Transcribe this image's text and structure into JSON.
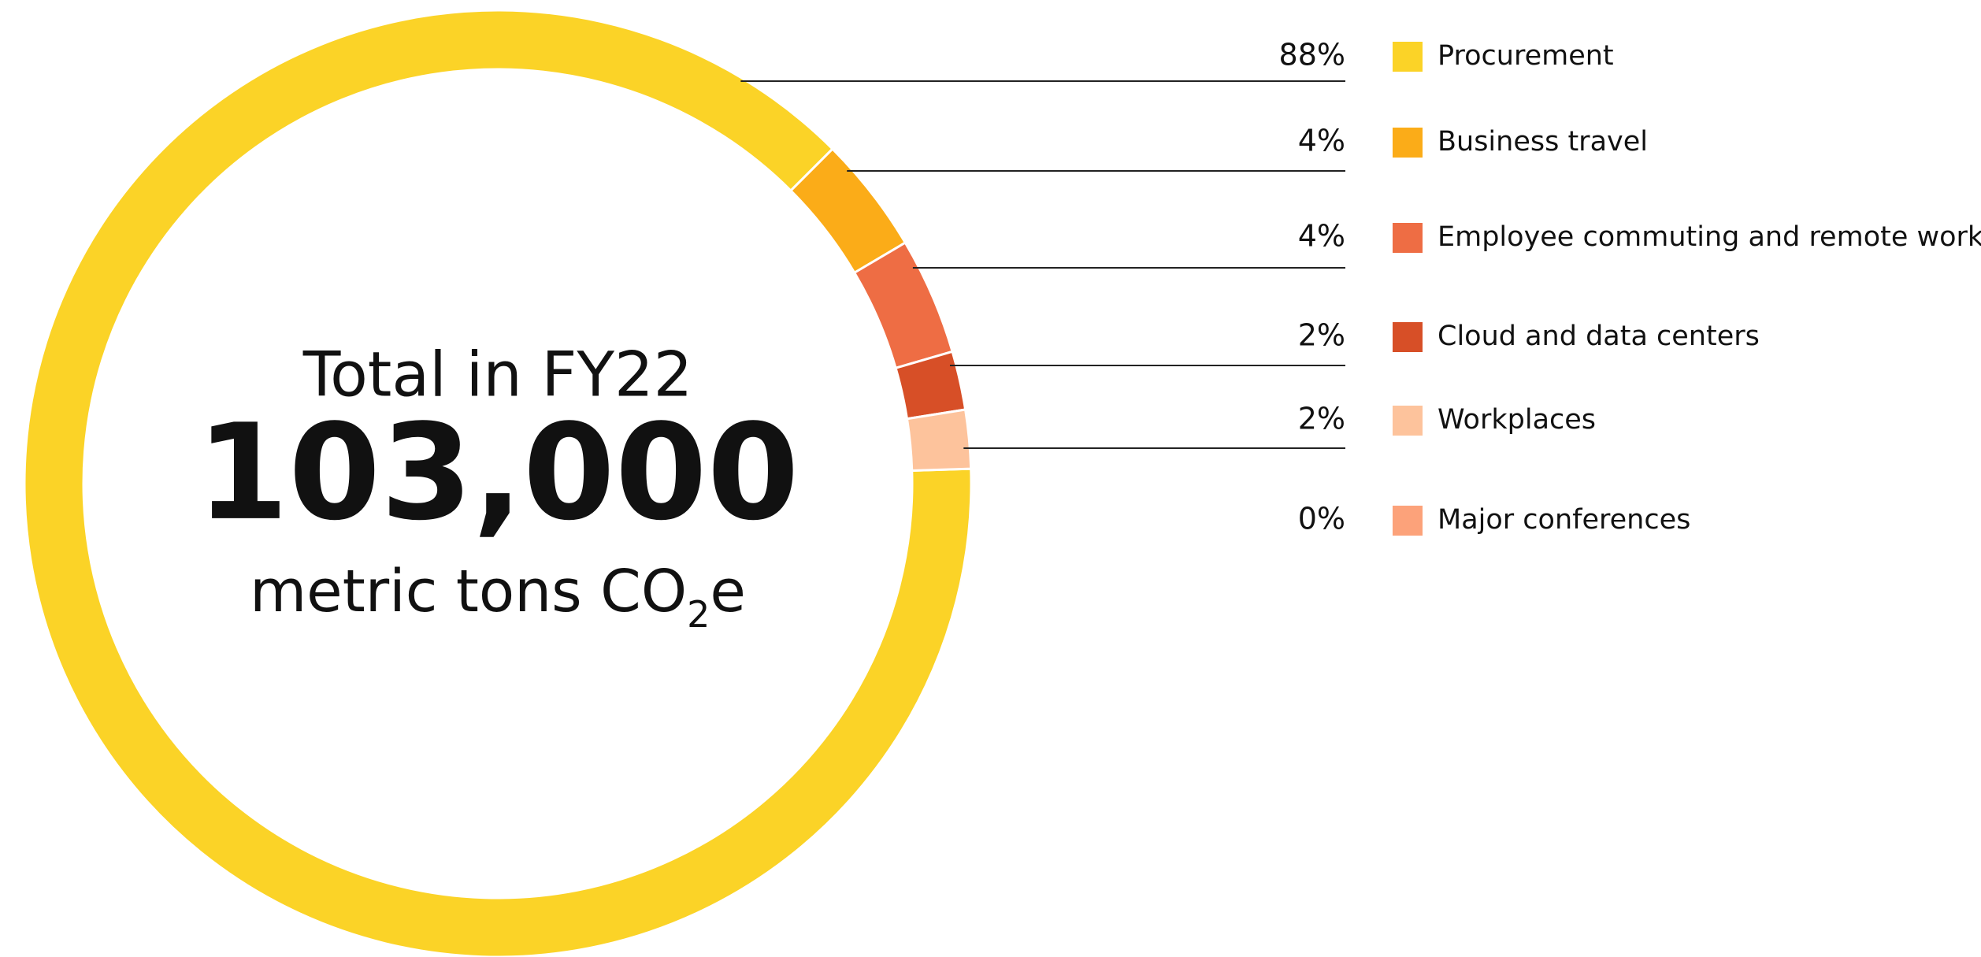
{
  "chart_data": {
    "type": "donut",
    "center_text": {
      "caption": "Total in FY22",
      "total": "103,000",
      "unit_prefix": "metric tons CO",
      "unit_sub": "2",
      "unit_suffix": "e"
    },
    "categories": [
      "Procurement",
      "Business travel",
      "Employee commuting and remote work",
      "Cloud and data centers",
      "Workplaces",
      "Major conferences"
    ],
    "values": [
      88,
      4,
      4,
      2,
      2,
      0
    ],
    "value_labels": [
      "88%",
      "4%",
      "4%",
      "2%",
      "2%",
      "0%"
    ],
    "colors": [
      "#fbd327",
      "#fbac18",
      "#ee6d44",
      "#d74f27",
      "#fdc39c",
      "#fca27a"
    ]
  }
}
